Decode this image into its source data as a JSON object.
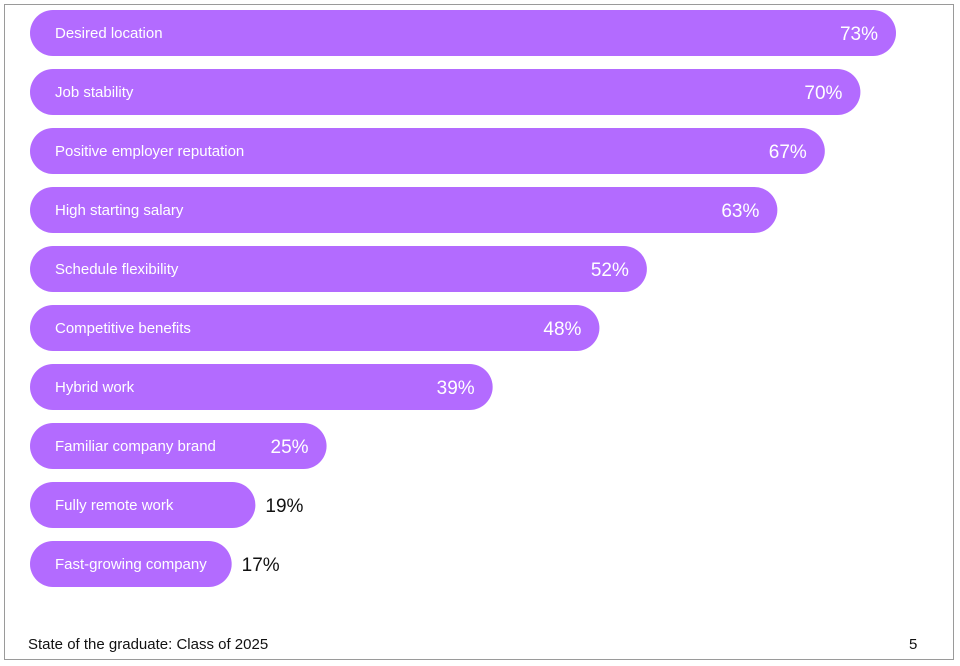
{
  "chart_data": {
    "type": "bar",
    "orientation": "horizontal",
    "categories": [
      "Desired location",
      "Job stability",
      "Positive employer reputation",
      "High starting salary",
      "Schedule flexibility",
      "Competitive benefits",
      "Hybrid work",
      "Familiar company brand",
      "Fully remote work",
      "Fast-growing company"
    ],
    "values": [
      73,
      70,
      67,
      63,
      52,
      48,
      39,
      25,
      19,
      17
    ],
    "value_labels": [
      "73%",
      "70%",
      "67%",
      "63%",
      "52%",
      "48%",
      "39%",
      "25%",
      "19%",
      "17%"
    ],
    "bar_color": "#b36bff",
    "label_color": "#ffffff",
    "outside_value_color": "#111111"
  },
  "footer": {
    "title": "State of the graduate: Class of 2025",
    "page_number": "5"
  }
}
